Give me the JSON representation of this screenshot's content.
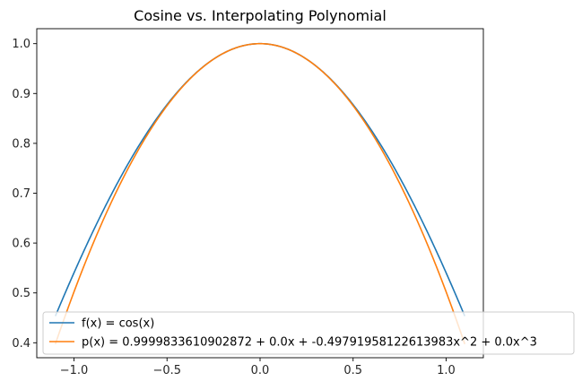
{
  "chart_data": {
    "type": "line",
    "title": "Cosine vs. Interpolating Polynomial",
    "xlabel": "",
    "ylabel": "",
    "xlim": [
      -1.2,
      1.2
    ],
    "ylim": [
      0.37,
      1.03
    ],
    "x_domain": [
      -1.1,
      1.1
    ],
    "x_ticks": [
      -1.0,
      -0.5,
      0.0,
      0.5,
      1.0
    ],
    "x_tick_labels": [
      "−1.0",
      "−0.5",
      "0.0",
      "0.5",
      "1.0"
    ],
    "y_ticks": [
      0.4,
      0.5,
      0.6,
      0.7,
      0.8,
      0.9,
      1.0
    ],
    "y_tick_labels": [
      "0.4",
      "0.5",
      "0.6",
      "0.7",
      "0.8",
      "0.9",
      "1.0"
    ],
    "grid": false,
    "legend_position": "lower-right",
    "series": [
      {
        "name": "f(x) = cos(x)",
        "color": "#1f77b4",
        "function": "cos",
        "coefficients": []
      },
      {
        "name": "p(x) = 0.9999833610902872 + 0.0x + -0.49791958122613983x^2 + 0.0x^3",
        "color": "#ff7f0e",
        "function": "polynomial",
        "coefficients": [
          0.9999833610902872,
          0.0,
          -0.49791958122613983,
          0.0
        ]
      }
    ]
  }
}
